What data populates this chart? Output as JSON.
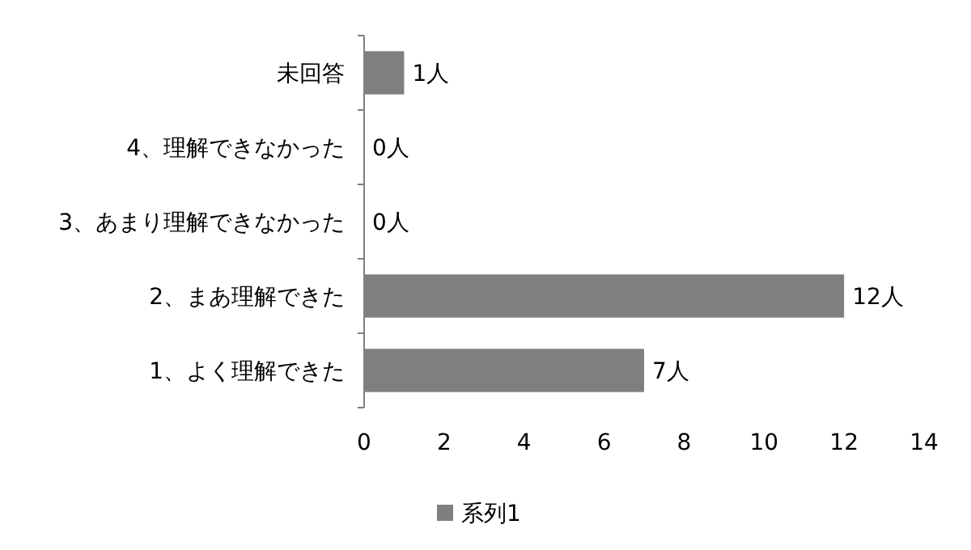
{
  "chart_data": {
    "type": "bar",
    "orientation": "horizontal",
    "categories": [
      "未回答",
      "4、理解できなかった",
      "3、あまり理解できなかった",
      "2、まあ理解できた",
      "1、よく理解できた"
    ],
    "series": [
      {
        "name": "系列1",
        "color": "#7f7f7f",
        "values": [
          1,
          0,
          0,
          12,
          7
        ],
        "value_labels": [
          "1人",
          "0人",
          "0人",
          "12人",
          "7人"
        ]
      }
    ],
    "xlim": [
      0,
      14
    ],
    "xticks": [
      0,
      2,
      4,
      6,
      8,
      10,
      12,
      14
    ],
    "legend": "bottom",
    "grid": false
  }
}
